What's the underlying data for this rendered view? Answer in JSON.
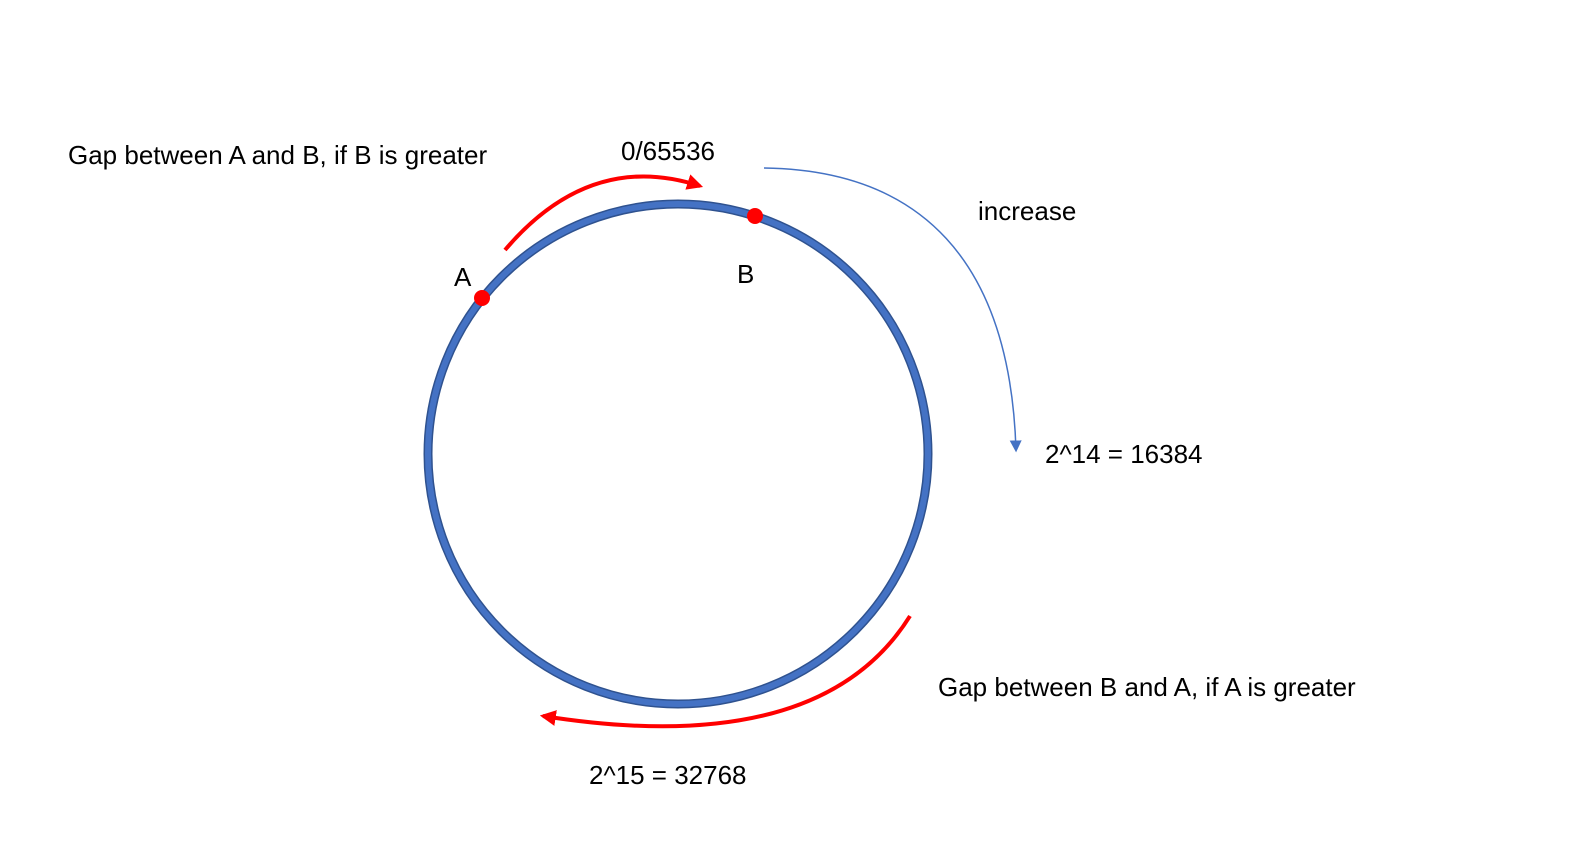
{
  "labels": {
    "gap_ab": "Gap between A and B, if B is greater",
    "gap_ba": "Gap between B and A, if A is greater",
    "top": "0/65536",
    "increase": "increase",
    "right": "2^14 = 16384",
    "bottom": "2^15 = 32768",
    "point_a": "A",
    "point_b": "B"
  },
  "colors": {
    "ring": "#4472C4",
    "ring_stroke": "#2F528F",
    "arrow_red": "#FF0000",
    "arrow_blue": "#4472C4",
    "point": "#FF0000"
  }
}
